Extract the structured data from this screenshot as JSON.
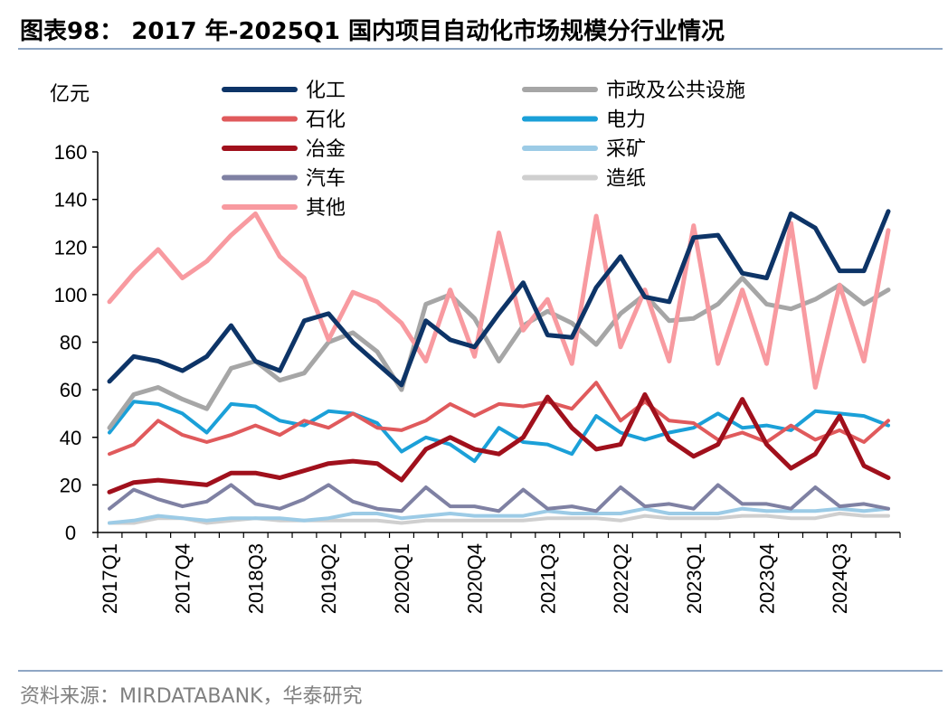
{
  "header": {
    "title": "图表98： 2017 年-2025Q1 国内项目自动化市场规模分行业情况"
  },
  "footer": {
    "source": "资料来源：MIRDATABANK，华泰研究"
  },
  "chart_data": {
    "type": "line",
    "ylabel": "亿元",
    "ylim": [
      0,
      160
    ],
    "yticks": [
      0,
      20,
      40,
      60,
      80,
      100,
      120,
      140,
      160
    ],
    "grid": false,
    "legend_position": "top",
    "x": [
      "2017Q1",
      "2017Q2",
      "2017Q3",
      "2017Q4",
      "2018Q1",
      "2018Q2",
      "2018Q3",
      "2018Q4",
      "2019Q1",
      "2019Q2",
      "2019Q3",
      "2019Q4",
      "2020Q1",
      "2020Q2",
      "2020Q3",
      "2020Q4",
      "2021Q1",
      "2021Q2",
      "2021Q3",
      "2021Q4",
      "2022Q1",
      "2022Q2",
      "2022Q3",
      "2022Q4",
      "2023Q1",
      "2023Q2",
      "2023Q3",
      "2023Q4",
      "2024Q1",
      "2024Q2",
      "2024Q3",
      "2024Q4",
      "2025Q1"
    ],
    "x_tick_labels": [
      "2017Q1",
      "2017Q4",
      "2018Q3",
      "2019Q2",
      "2020Q1",
      "2020Q4",
      "2021Q3",
      "2022Q2",
      "2023Q1",
      "2023Q4",
      "2024Q3"
    ],
    "series": [
      {
        "name": "化工",
        "color": "#0d3467",
        "width": 5,
        "values": [
          63.5,
          74,
          72,
          68,
          74,
          87,
          72,
          68,
          89,
          92,
          80,
          71,
          62,
          89,
          81,
          78,
          92,
          105,
          83,
          82,
          103,
          116,
          99,
          97,
          124,
          125,
          109,
          107,
          134,
          128,
          110,
          110,
          135
        ]
      },
      {
        "name": "市政及公共设施",
        "color": "#a6a6a6",
        "width": 5,
        "values": [
          44,
          58,
          61,
          56,
          52,
          69,
          72,
          64,
          67,
          80,
          84,
          76,
          60,
          96,
          100,
          90,
          72,
          87,
          93,
          88,
          79,
          92,
          100,
          89,
          90,
          96,
          107,
          96,
          94,
          98,
          104,
          96,
          102
        ]
      },
      {
        "name": "石化",
        "color": "#e05a5c",
        "width": 4,
        "values": [
          33,
          37,
          47,
          41,
          38,
          41,
          45,
          41,
          47,
          44,
          50,
          44,
          43,
          47,
          54,
          49,
          54,
          53,
          55,
          52,
          63,
          47,
          55,
          47,
          46,
          39,
          42,
          38,
          45,
          39,
          43,
          38,
          47
        ]
      },
      {
        "name": "电力",
        "color": "#1ba0d8",
        "width": 4,
        "values": [
          42,
          55,
          54,
          50,
          42,
          54,
          53,
          47,
          45,
          51,
          50,
          46,
          34,
          40,
          37,
          30,
          44,
          38,
          37,
          33,
          49,
          42,
          39,
          42,
          44,
          50,
          44,
          45,
          43,
          51,
          50,
          49,
          45
        ]
      },
      {
        "name": "冶金",
        "color": "#a0101c",
        "width": 5,
        "values": [
          17,
          21,
          22,
          21,
          20,
          25,
          25,
          23,
          26,
          29,
          30,
          29,
          22,
          35,
          40,
          35,
          33,
          40,
          57,
          44,
          35,
          37,
          58,
          39,
          32,
          37,
          56,
          37,
          27,
          33,
          49,
          28,
          23
        ]
      },
      {
        "name": "采矿",
        "color": "#9ccbe6",
        "width": 4,
        "values": [
          4,
          5,
          7,
          6,
          5,
          6,
          6,
          6,
          5,
          6,
          8,
          8,
          6,
          7,
          8,
          7,
          7,
          7,
          9,
          8,
          8,
          8,
          10,
          8,
          8,
          8,
          10,
          9,
          9,
          9,
          10,
          9,
          10
        ]
      },
      {
        "name": "汽车",
        "color": "#7f81a3",
        "width": 4,
        "values": [
          10,
          18,
          14,
          11,
          13,
          20,
          12,
          10,
          14,
          20,
          13,
          10,
          9,
          19,
          11,
          11,
          9,
          18,
          10,
          11,
          9,
          19,
          11,
          12,
          10,
          20,
          12,
          12,
          10,
          19,
          11,
          12,
          10
        ]
      },
      {
        "name": "造纸",
        "color": "#cfcfcf",
        "width": 4,
        "values": [
          4,
          4,
          6,
          6,
          4,
          5,
          6,
          5,
          5,
          5,
          5,
          5,
          4,
          5,
          5,
          5,
          5,
          5,
          6,
          6,
          6,
          5,
          7,
          6,
          6,
          6,
          7,
          7,
          6,
          6,
          8,
          7,
          7
        ]
      },
      {
        "name": "其他",
        "color": "#f89aa0",
        "width": 5,
        "values": [
          97,
          109,
          119,
          107,
          114,
          125,
          134,
          116,
          107,
          81,
          101,
          97,
          88,
          72,
          102,
          74,
          126,
          85,
          98,
          71,
          133,
          78,
          102,
          72,
          129,
          71,
          102,
          71,
          130,
          61,
          104,
          72,
          127
        ]
      }
    ]
  }
}
